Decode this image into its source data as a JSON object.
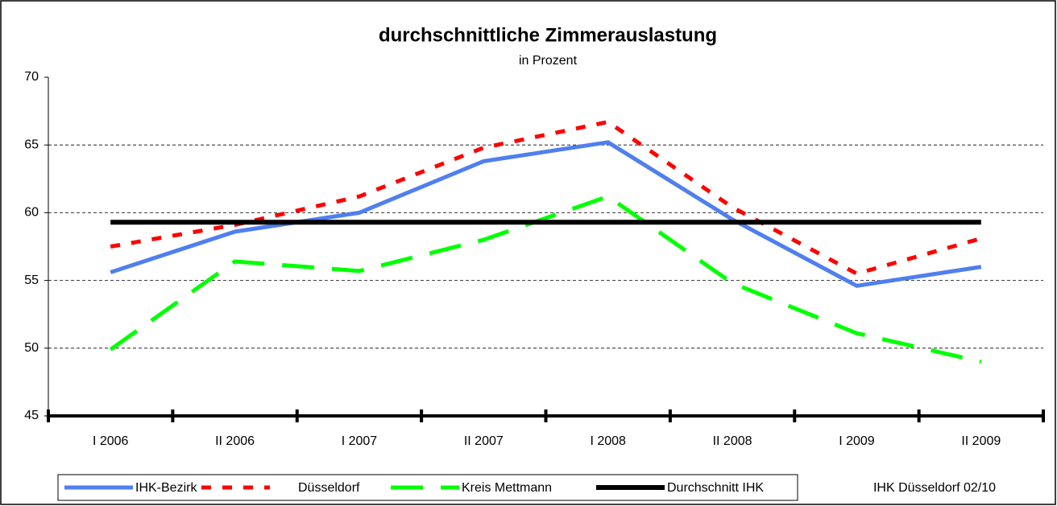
{
  "chart_data": {
    "type": "line",
    "title": "durchschnittliche Zimmerauslastung",
    "subtitle": "in Prozent",
    "source": "IHK Düsseldorf 02/10",
    "categories": [
      "I 2006",
      "II 2006",
      "I 2007",
      "II 2007",
      "I 2008",
      "II 2008",
      "I 2009",
      "II 2009"
    ],
    "series": [
      {
        "name": "IHK-Bezirk",
        "color": "#4f7fef",
        "dash": "solid",
        "values": [
          55.6,
          58.6,
          60.0,
          63.8,
          65.2,
          59.5,
          54.6,
          56.0
        ]
      },
      {
        "name": "Düsseldorf",
        "color": "#ff0000",
        "dash": "short",
        "values": [
          57.5,
          59.1,
          61.2,
          64.8,
          66.7,
          60.4,
          55.5,
          58.1
        ]
      },
      {
        "name": "Kreis Mettmann",
        "color": "#00ff00",
        "dash": "long",
        "values": [
          49.9,
          56.4,
          55.7,
          58.0,
          61.2,
          54.8,
          51.1,
          49.0
        ]
      },
      {
        "name": "Durchschnitt IHK",
        "color": "#000000",
        "dash": "solid",
        "values": [
          59.3,
          59.3,
          59.3,
          59.3,
          59.3,
          59.3,
          59.3,
          59.3
        ]
      }
    ],
    "ylim": [
      45,
      70
    ],
    "yticks": [
      45,
      50,
      55,
      60,
      65,
      70
    ],
    "grid": true,
    "legend": "bottom"
  }
}
